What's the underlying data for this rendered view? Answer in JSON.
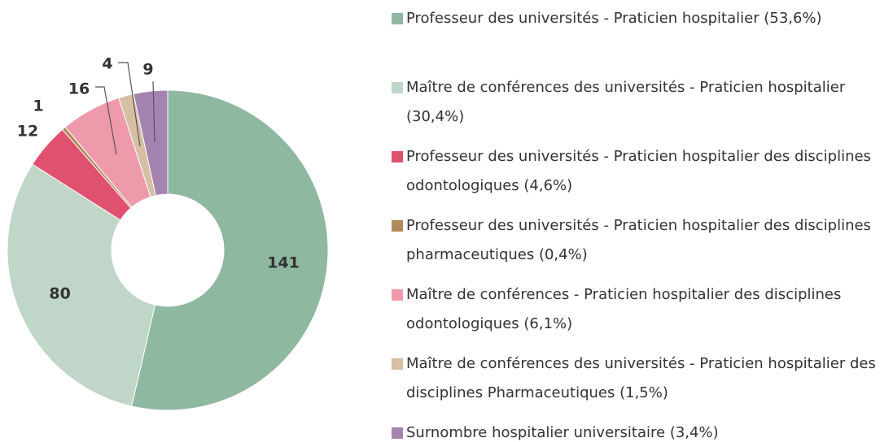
{
  "chart_data": {
    "type": "donut",
    "categories": [
      "Professeur des universités - Praticien hospitalier (53,6%)",
      "Maître de conférences des universités - Praticien hospitalier (30,4%)",
      "Professeur des universités - Praticien hospitalier des disciplines odontologiques (4,6%)",
      "Professeur des universités - Praticien hospitalier des disciplines pharmaceutiques (0,4%)",
      "Maître de conférences - Praticien hospitalier des disciplines odontologiques (6,1%)",
      "Maître de conférences des universités - Praticien hospitalier des disciplines Pharmaceutiques (1,5%)",
      "Surnombre hospitalier universitaire (3,4%)"
    ],
    "values": [
      141,
      80,
      12,
      1,
      16,
      4,
      9
    ],
    "colors": [
      "#8fb8a0",
      "#bfd6c8",
      "#e0506f",
      "#b08a5a",
      "#ee9aaa",
      "#d6bfa3",
      "#a583b0"
    ]
  }
}
